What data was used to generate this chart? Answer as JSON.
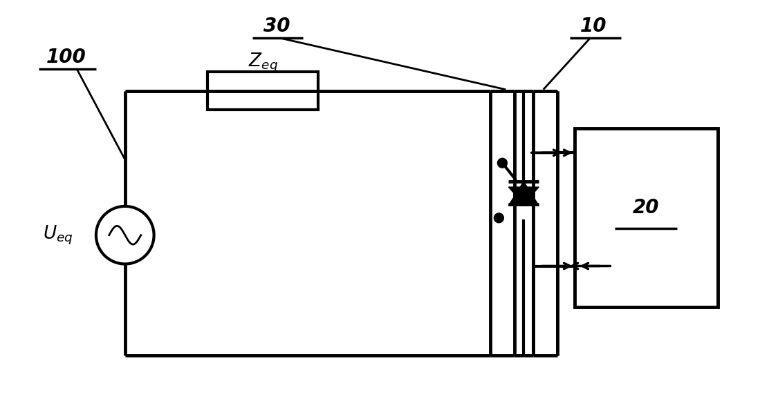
{
  "bg_color": "#ffffff",
  "line_color": "#000000",
  "lw": 2.5,
  "tlw": 3.5,
  "fig_w": 10.99,
  "fig_h": 5.71
}
